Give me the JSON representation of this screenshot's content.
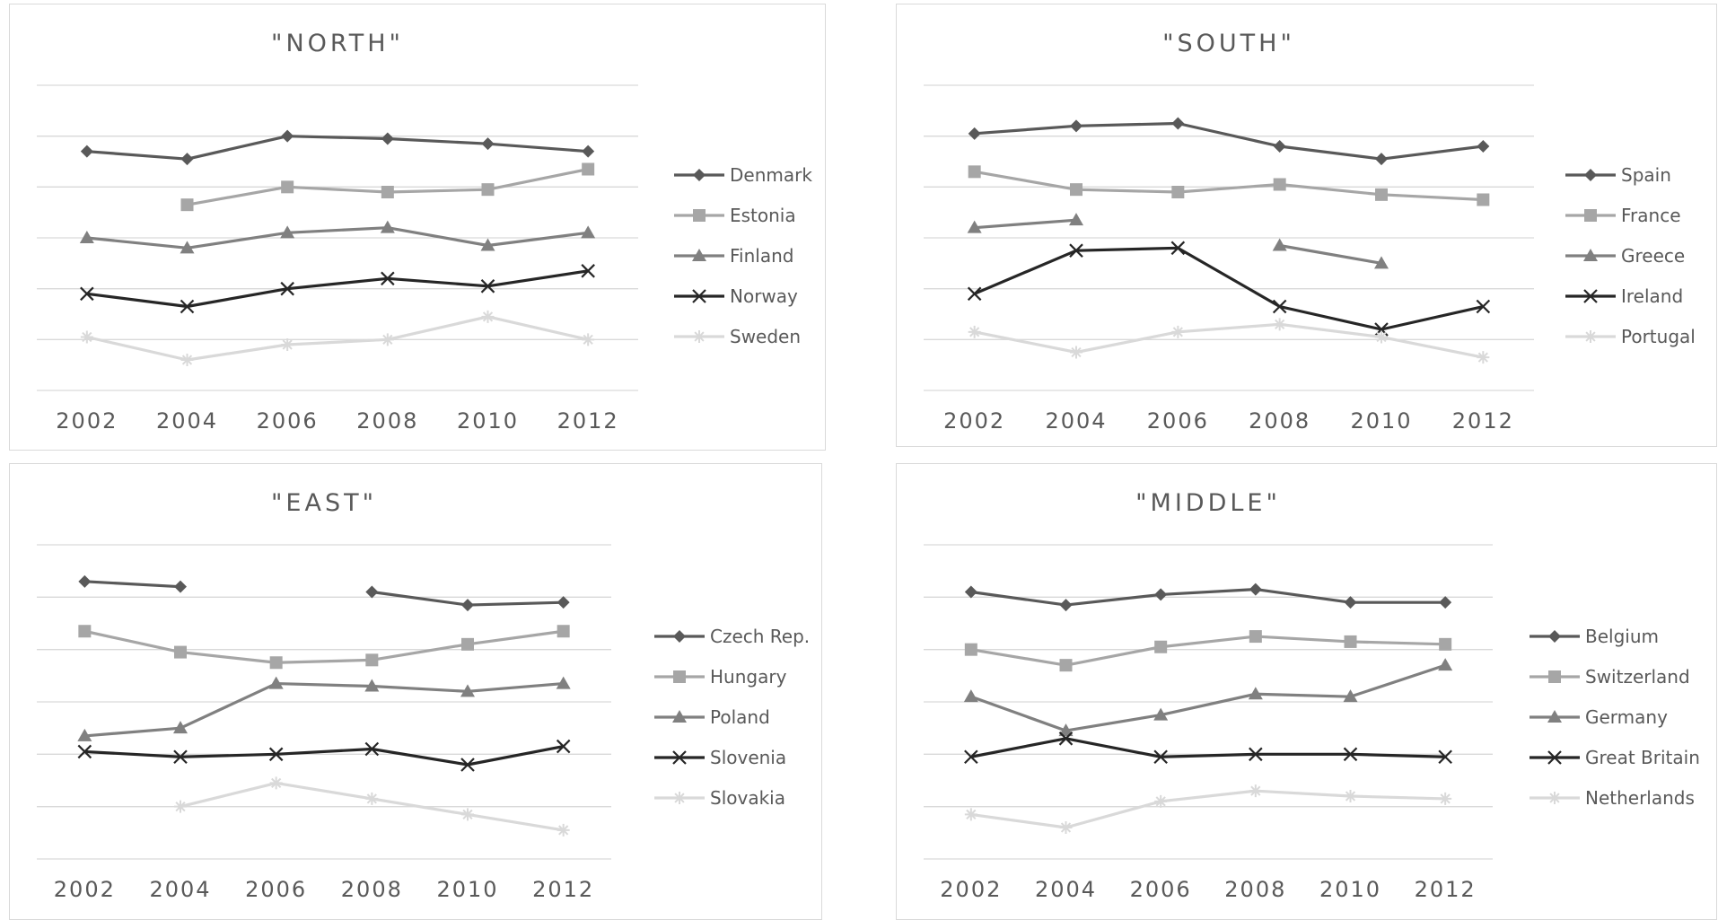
{
  "chart_data": [
    {
      "type": "line",
      "title": "\"NORTH\"",
      "x": [
        "2002",
        "2004",
        "2006",
        "2008",
        "2010",
        "2012"
      ],
      "ylim": [
        0,
        6
      ],
      "grid": true,
      "legend": "right",
      "series": [
        {
          "name": "Denmark",
          "values": [
            4.7,
            4.55,
            5.0,
            4.95,
            4.85,
            4.7
          ],
          "color": "#595959",
          "marker": "diamond"
        },
        {
          "name": "Estonia",
          "values": [
            null,
            3.65,
            4.0,
            3.9,
            3.95,
            4.35
          ],
          "color": "#a6a6a6",
          "marker": "square"
        },
        {
          "name": "Finland",
          "values": [
            3.0,
            2.8,
            3.1,
            3.2,
            2.85,
            3.1
          ],
          "color": "#808080",
          "marker": "triangle"
        },
        {
          "name": "Norway",
          "values": [
            1.9,
            1.65,
            2.0,
            2.2,
            2.05,
            2.35
          ],
          "color": "#262626",
          "marker": "x"
        },
        {
          "name": "Sweden",
          "values": [
            1.05,
            0.6,
            0.9,
            1.0,
            1.45,
            1.0
          ],
          "color": "#d9d9d9",
          "marker": "star"
        }
      ]
    },
    {
      "type": "line",
      "title": "\"SOUTH\"",
      "x": [
        "2002",
        "2004",
        "2006",
        "2008",
        "2010",
        "2012"
      ],
      "ylim": [
        0,
        6
      ],
      "grid": true,
      "legend": "right",
      "series": [
        {
          "name": "Spain",
          "values": [
            5.05,
            5.2,
            5.25,
            4.8,
            4.55,
            4.8
          ],
          "color": "#595959",
          "marker": "diamond"
        },
        {
          "name": "France",
          "values": [
            4.3,
            3.95,
            3.9,
            4.05,
            3.85,
            3.75
          ],
          "color": "#a6a6a6",
          "marker": "square"
        },
        {
          "name": "Greece",
          "values": [
            3.2,
            3.35,
            null,
            2.85,
            2.5,
            null
          ],
          "color": "#808080",
          "marker": "triangle"
        },
        {
          "name": "Ireland",
          "values": [
            1.9,
            2.75,
            2.8,
            1.65,
            1.2,
            1.65
          ],
          "color": "#262626",
          "marker": "x"
        },
        {
          "name": "Portugal",
          "values": [
            1.15,
            0.75,
            1.15,
            1.3,
            1.05,
            0.65
          ],
          "color": "#d9d9d9",
          "marker": "star"
        }
      ]
    },
    {
      "type": "line",
      "title": "\"EAST\"",
      "x": [
        "2002",
        "2004",
        "2006",
        "2008",
        "2010",
        "2012"
      ],
      "ylim": [
        0,
        6
      ],
      "grid": true,
      "legend": "right",
      "series": [
        {
          "name": "Czech Rep.",
          "values": [
            5.3,
            5.2,
            null,
            5.1,
            4.85,
            4.9
          ],
          "color": "#595959",
          "marker": "diamond"
        },
        {
          "name": "Hungary",
          "values": [
            4.35,
            3.95,
            3.75,
            3.8,
            4.1,
            4.35
          ],
          "color": "#a6a6a6",
          "marker": "square"
        },
        {
          "name": "Poland",
          "values": [
            2.35,
            2.5,
            3.35,
            3.3,
            3.2,
            3.35
          ],
          "color": "#808080",
          "marker": "triangle"
        },
        {
          "name": "Slovenia",
          "values": [
            2.05,
            1.95,
            2.0,
            2.1,
            1.8,
            2.15
          ],
          "color": "#262626",
          "marker": "x"
        },
        {
          "name": "Slovakia",
          "values": [
            null,
            1.0,
            1.45,
            1.15,
            0.85,
            0.55
          ],
          "color": "#d9d9d9",
          "marker": "star"
        }
      ]
    },
    {
      "type": "line",
      "title": "\"MIDDLE\"",
      "x": [
        "2002",
        "2004",
        "2006",
        "2008",
        "2010",
        "2012"
      ],
      "ylim": [
        0,
        6
      ],
      "grid": true,
      "legend": "right",
      "series": [
        {
          "name": "Belgium",
          "values": [
            5.1,
            4.85,
            5.05,
            5.15,
            4.9,
            4.9
          ],
          "color": "#595959",
          "marker": "diamond"
        },
        {
          "name": "Switzerland",
          "values": [
            4.0,
            3.7,
            4.05,
            4.25,
            4.15,
            4.1
          ],
          "color": "#a6a6a6",
          "marker": "square"
        },
        {
          "name": "Germany",
          "values": [
            3.1,
            2.45,
            2.75,
            3.15,
            3.1,
            3.7
          ],
          "color": "#808080",
          "marker": "triangle"
        },
        {
          "name": "Great Britain",
          "values": [
            1.95,
            2.3,
            1.95,
            2.0,
            2.0,
            1.95
          ],
          "color": "#262626",
          "marker": "x"
        },
        {
          "name": "Netherlands",
          "values": [
            0.85,
            0.6,
            1.1,
            1.3,
            1.2,
            1.15
          ],
          "color": "#d9d9d9",
          "marker": "star"
        }
      ]
    }
  ]
}
